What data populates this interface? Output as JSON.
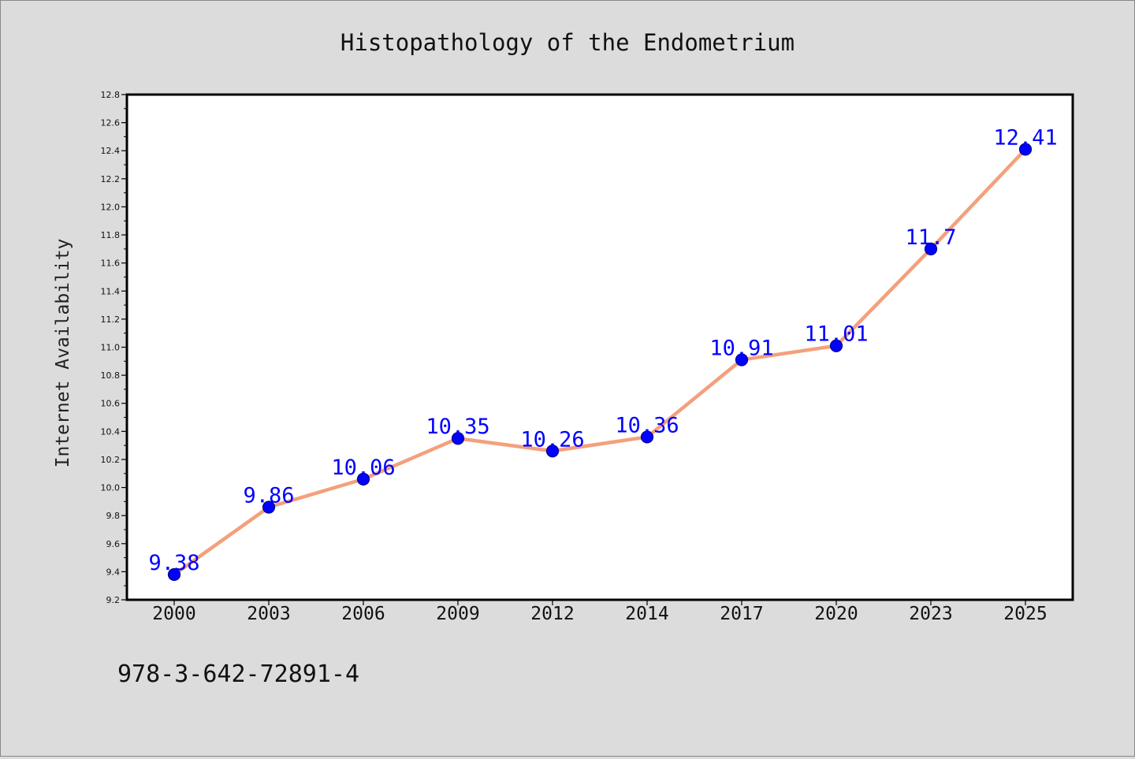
{
  "chart_data": {
    "type": "line",
    "title": "Histopathology of the Endometrium",
    "xlabel": "",
    "ylabel": "Internet Availability",
    "categories": [
      "2000",
      "2003",
      "2006",
      "2009",
      "2012",
      "2014",
      "2017",
      "2020",
      "2023",
      "2025"
    ],
    "series": [
      {
        "values": [
          9.38,
          9.86,
          10.06,
          10.35,
          10.26,
          10.36,
          10.91,
          11.01,
          11.7,
          12.41
        ],
        "labels": [
          "9.38",
          "9.86",
          "10.06",
          "10.35",
          "10.26",
          "10.36",
          "10.91",
          "11.01",
          "11.7",
          "12.41"
        ]
      }
    ],
    "ylim": [
      9.2,
      12.8
    ],
    "yticks": [
      "9.2",
      "9.4",
      "9.6",
      "9.8",
      "10.0",
      "10.2",
      "10.4",
      "10.6",
      "10.8",
      "11.0",
      "11.2",
      "11.4",
      "11.6",
      "11.8",
      "12.0",
      "12.2",
      "12.4",
      "12.6",
      "12.8"
    ],
    "grid": false,
    "legend": "none",
    "colors": {
      "line": "#f4a07c",
      "marker": "#0000ff",
      "marker_edge": "#00008b",
      "data_label": "#0000ff",
      "background": "#dcdcdc",
      "plot_background": "#ffffff"
    }
  },
  "footer": {
    "isbn": "978-3-642-72891-4"
  }
}
